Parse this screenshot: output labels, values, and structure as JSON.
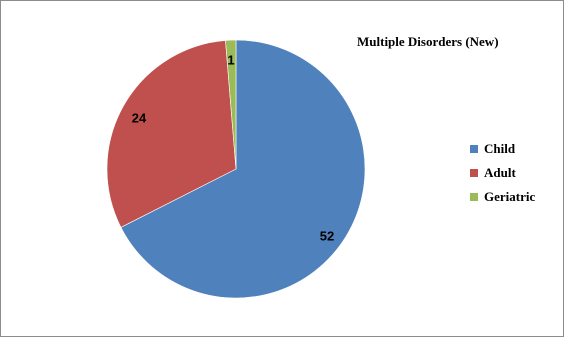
{
  "chart_data": {
    "type": "pie",
    "title": "Multiple Disorders (New)",
    "categories": [
      "Child",
      "Adult",
      "Geriatric"
    ],
    "values": [
      52,
      24,
      1
    ],
    "colors": [
      "#4f81bd",
      "#c0504d",
      "#9bbb59"
    ],
    "start_angle_deg": -90,
    "direction": "clockwise",
    "legend_position": "right"
  }
}
